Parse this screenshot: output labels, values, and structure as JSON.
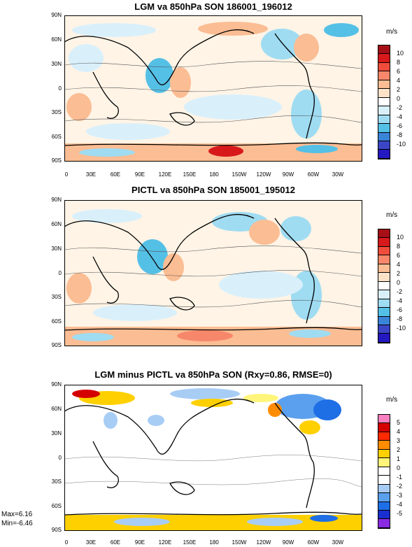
{
  "panels": [
    {
      "title": "LGM va 850hPa SON 186001_196012",
      "units": "m/s",
      "colorbar": {
        "labels": [
          "10",
          "8",
          "6",
          "4",
          "2",
          "0",
          "-2",
          "-4",
          "-6",
          "-8",
          "-10"
        ],
        "colors": [
          "#a50f15",
          "#d7191c",
          "#f04c3b",
          "#f7876a",
          "#fbbd93",
          "#fde2c8",
          "#ffffff",
          "#d9f0fb",
          "#9fdcf2",
          "#55c0e6",
          "#3a84d9",
          "#3b46c6",
          "#2418c0"
        ]
      }
    },
    {
      "title": "PICTL va 850hPa SON 185001_195012",
      "units": "m/s",
      "colorbar": {
        "labels": [
          "10",
          "8",
          "6",
          "4",
          "2",
          "0",
          "-2",
          "-4",
          "-6",
          "-8",
          "-10"
        ],
        "colors": [
          "#a50f15",
          "#d7191c",
          "#f04c3b",
          "#f7876a",
          "#fbbd93",
          "#fde2c8",
          "#ffffff",
          "#d9f0fb",
          "#9fdcf2",
          "#55c0e6",
          "#3a84d9",
          "#3b46c6",
          "#2418c0"
        ]
      }
    },
    {
      "title": "LGM minus PICTL va 850hPa SON (Rxy=0.86, RMSE=0)",
      "units": "m/s",
      "colorbar": {
        "labels": [
          "5",
          "4",
          "3",
          "2",
          "1",
          "0",
          "-1",
          "-2",
          "-3",
          "-4",
          "-5"
        ],
        "colors": [
          "#ff80c0",
          "#d40000",
          "#ff2a00",
          "#ff8c00",
          "#ffd000",
          "#fff57a",
          "#ffffff",
          "#ffffff",
          "#a8cdf5",
          "#5aa0ee",
          "#1e6ee6",
          "#1a2fd0",
          "#8a2be2"
        ]
      },
      "max_label": "Max=6.16",
      "min_label": "Min=-6.46"
    }
  ],
  "lat_labels": [
    "90N",
    "60N",
    "30N",
    "0",
    "30S",
    "60S",
    "90S"
  ],
  "lon_labels": [
    "0",
    "30E",
    "60E",
    "90E",
    "120E",
    "150E",
    "180",
    "150W",
    "120W",
    "90W",
    "60W",
    "30W"
  ]
}
